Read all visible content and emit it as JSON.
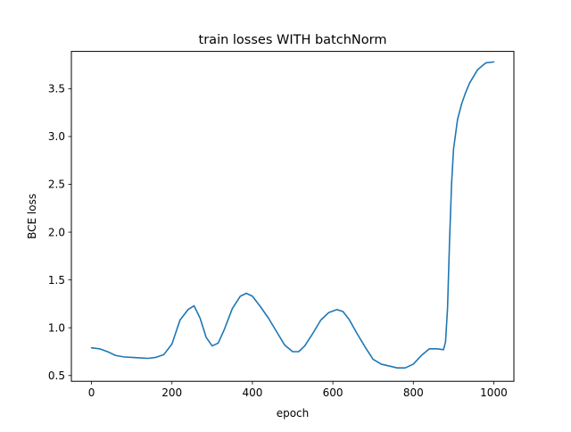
{
  "chart_data": {
    "type": "line",
    "title": "train losses WITH batchNorm",
    "xlabel": "epoch",
    "ylabel": "BCE loss",
    "xlim": [
      -50,
      1050
    ],
    "ylim": [
      0.44,
      3.89
    ],
    "xticks": [
      0,
      200,
      400,
      600,
      800,
      1000
    ],
    "xtick_labels": [
      "0",
      "200",
      "400",
      "600",
      "800",
      "1000"
    ],
    "yticks": [
      0.5,
      1.0,
      1.5,
      2.0,
      2.5,
      3.0,
      3.5
    ],
    "ytick_labels": [
      "0.5",
      "1.0",
      "1.5",
      "2.0",
      "2.5",
      "3.0",
      "3.5"
    ],
    "grid": false,
    "series": [
      {
        "color": "#1f77b4",
        "x": [
          0,
          20,
          40,
          60,
          80,
          100,
          120,
          140,
          160,
          180,
          200,
          220,
          240,
          255,
          270,
          285,
          300,
          315,
          330,
          350,
          370,
          385,
          400,
          420,
          440,
          460,
          480,
          500,
          515,
          530,
          550,
          570,
          590,
          610,
          625,
          640,
          660,
          680,
          700,
          720,
          740,
          760,
          780,
          800,
          820,
          840,
          860,
          875,
          880,
          885,
          890,
          895,
          900,
          910,
          920,
          930,
          940,
          960,
          980,
          1000
        ],
        "y": [
          0.79,
          0.78,
          0.75,
          0.71,
          0.695,
          0.69,
          0.685,
          0.68,
          0.69,
          0.72,
          0.83,
          1.08,
          1.19,
          1.23,
          1.1,
          0.9,
          0.81,
          0.84,
          0.98,
          1.2,
          1.33,
          1.36,
          1.33,
          1.22,
          1.1,
          0.96,
          0.82,
          0.75,
          0.75,
          0.81,
          0.94,
          1.08,
          1.16,
          1.19,
          1.17,
          1.09,
          0.94,
          0.8,
          0.67,
          0.62,
          0.6,
          0.58,
          0.58,
          0.62,
          0.71,
          0.78,
          0.78,
          0.77,
          0.85,
          1.2,
          1.9,
          2.5,
          2.87,
          3.18,
          3.34,
          3.46,
          3.56,
          3.7,
          3.77,
          3.78
        ]
      }
    ]
  }
}
